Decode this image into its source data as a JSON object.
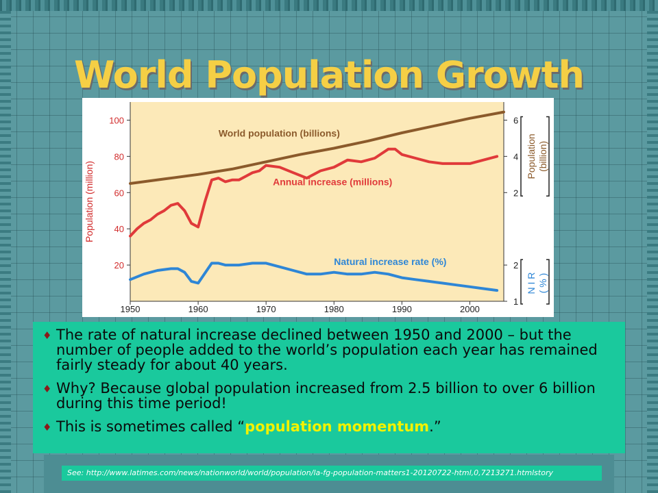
{
  "slide": {
    "title": "World Population Growth",
    "bullets": [
      {
        "text": "The rate of natural increase declined between 1950 and 2000 – but the number of people added to the world’s population each year has remained fairly steady for about 40 years."
      },
      {
        "text": "Why?  Because global population increased from 2.5 billion to over 6 billion during this time period!"
      },
      {
        "pre": "This is sometimes called “",
        "highlight": "population momentum",
        "post": ".”"
      }
    ],
    "footer": "See: http://www.latimes.com/news/nationworld/world/population/la-fg-population-matters1-20120722-html,0,7213271.htmlstory",
    "colors": {
      "title": "#f5cf45",
      "bullet_box": "#1ac99d",
      "highlight": "#f2f200",
      "bullet_marker": "#8a1a1a"
    }
  },
  "chart_data": {
    "type": "line",
    "x_ticks": [
      1950,
      1960,
      1970,
      1980,
      1990,
      2000
    ],
    "xlim": [
      1950,
      2005
    ],
    "left_axis": {
      "label": "Population (million)",
      "ticks": [
        20,
        40,
        60,
        80,
        100
      ],
      "ylim": [
        0,
        110
      ]
    },
    "right_axis_top": {
      "label_line1": "Population",
      "label_line2": "(billion)",
      "ticks": [
        2,
        4,
        6
      ]
    },
    "right_axis_bottom": {
      "label_line1": "N I R",
      "label_line2": "( % )",
      "ticks": [
        1,
        2
      ]
    },
    "background": "#fce9b8",
    "series": [
      {
        "name": "World population (billions)",
        "color": "#8b5a2b",
        "axis": "population_billion",
        "x": [
          1950,
          1955,
          1960,
          1965,
          1970,
          1975,
          1980,
          1985,
          1990,
          1995,
          2000,
          2005
        ],
        "values": [
          2.5,
          2.75,
          3.0,
          3.3,
          3.7,
          4.1,
          4.45,
          4.85,
          5.3,
          5.7,
          6.1,
          6.45
        ]
      },
      {
        "name": "Annual increase (millions)",
        "color": "#e03a3a",
        "axis": "million",
        "x": [
          1950,
          1951,
          1952,
          1953,
          1954,
          1955,
          1956,
          1957,
          1958,
          1959,
          1960,
          1961,
          1962,
          1963,
          1964,
          1965,
          1966,
          1967,
          1968,
          1969,
          1970,
          1972,
          1974,
          1976,
          1978,
          1980,
          1982,
          1984,
          1986,
          1988,
          1989,
          1990,
          1992,
          1994,
          1996,
          1998,
          2000,
          2002,
          2004
        ],
        "values": [
          36,
          40,
          43,
          45,
          48,
          50,
          53,
          54,
          50,
          43,
          41,
          55,
          67,
          68,
          66,
          67,
          67,
          69,
          71,
          72,
          75,
          74,
          71,
          68,
          72,
          74,
          78,
          77,
          79,
          84,
          84,
          81,
          79,
          77,
          76,
          76,
          76,
          78,
          80
        ]
      },
      {
        "name": "Natural increase rate (%)",
        "color": "#2e86d6",
        "axis": "nir",
        "x": [
          1950,
          1952,
          1954,
          1956,
          1957,
          1958,
          1959,
          1960,
          1962,
          1963,
          1964,
          1966,
          1968,
          1970,
          1972,
          1974,
          1976,
          1978,
          1980,
          1982,
          1984,
          1986,
          1988,
          1990,
          1992,
          1994,
          1996,
          1998,
          2000,
          2002,
          2004
        ],
        "values": [
          1.6,
          1.75,
          1.85,
          1.9,
          1.9,
          1.8,
          1.55,
          1.5,
          2.05,
          2.05,
          2.0,
          2.0,
          2.05,
          2.05,
          1.95,
          1.85,
          1.75,
          1.75,
          1.8,
          1.75,
          1.75,
          1.8,
          1.75,
          1.65,
          1.6,
          1.55,
          1.5,
          1.45,
          1.4,
          1.35,
          1.3
        ]
      }
    ]
  }
}
